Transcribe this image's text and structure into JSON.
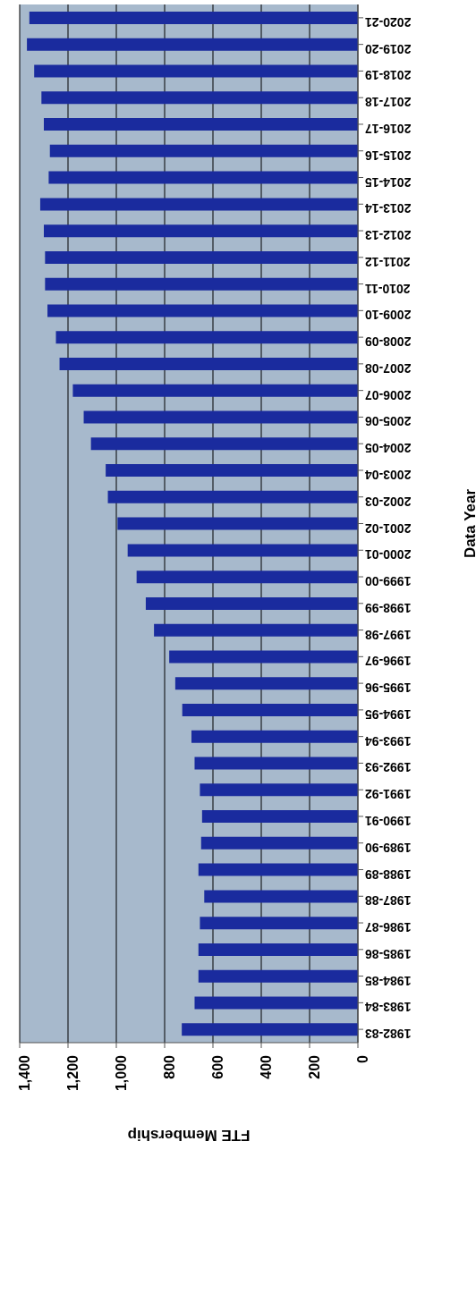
{
  "chart_data": {
    "type": "bar",
    "orientation": "horizontal",
    "xlabel": "FTE Membership",
    "ylabel": "Data Year",
    "categories": [
      "2020-21",
      "2019-20",
      "2018-19",
      "2017-18",
      "2016-17",
      "2015-16",
      "2014-15",
      "2013-14",
      "2012-13",
      "2011-12",
      "2010-11",
      "2009-10",
      "2008-09",
      "2007-08",
      "2006-07",
      "2005-06",
      "2004-05",
      "2003-04",
      "2002-03",
      "2001-02",
      "2000-01",
      "1999-00",
      "1998-99",
      "1997-98",
      "1996-97",
      "1995-96",
      "1994-95",
      "1993-94",
      "1992-93",
      "1991-92",
      "1990-91",
      "1989-90",
      "1988-89",
      "1987-88",
      "1986-87",
      "1985-86",
      "1984-85",
      "1983-84",
      "1982-83"
    ],
    "values": [
      1360,
      1370,
      1340,
      1310,
      1300,
      1275,
      1280,
      1315,
      1300,
      1295,
      1295,
      1285,
      1250,
      1235,
      1180,
      1135,
      1105,
      1044,
      1035,
      995,
      953,
      916,
      878,
      844,
      781,
      756,
      727,
      689,
      676,
      654,
      645,
      649,
      660,
      636,
      654,
      660,
      660,
      676,
      729
    ],
    "color": "#1a2b9e",
    "xlim": [
      1400,
      0
    ],
    "xticks": [
      {
        "value": 1400,
        "label": "1,400"
      },
      {
        "value": 1200,
        "label": "1,200"
      },
      {
        "value": 1000,
        "label": "1,000"
      },
      800,
      600,
      400,
      200,
      0
    ],
    "grid": "x"
  }
}
